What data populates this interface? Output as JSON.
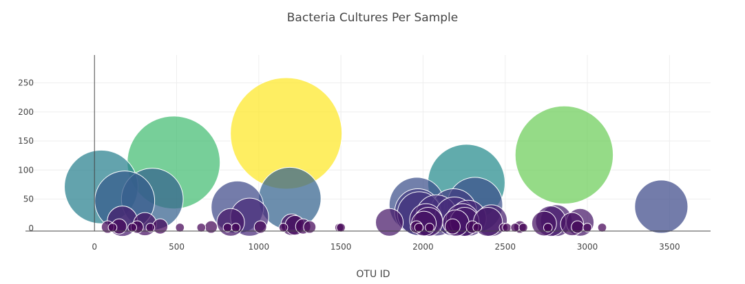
{
  "chart_data": {
    "type": "scatter",
    "title": "Bacteria Cultures Per Sample",
    "xlabel": "OTU ID",
    "ylabel": "",
    "xlim": [
      -420,
      3750
    ],
    "ylim": [
      -5,
      298
    ],
    "xticks": [
      0,
      500,
      1000,
      1500,
      2000,
      2500,
      3000,
      3500
    ],
    "yticks": [
      0,
      50,
      100,
      150,
      200,
      250
    ],
    "grid": true,
    "legend": "none",
    "colorscale": [
      "#440154",
      "#482878",
      "#3e4989",
      "#31688e",
      "#26828e",
      "#1f9e89",
      "#35b779",
      "#6ece58",
      "#b5de2b",
      "#fde725"
    ],
    "series": [
      {
        "x": [
          41,
          184,
          352,
          482,
          870,
          944,
          1167,
          1189,
          1962,
          1968,
          1977,
          2018,
          2082,
          2186,
          2191,
          2264,
          2275,
          2316,
          2859,
          3450,
          170,
          307,
          829,
          1795,
          2032,
          2240,
          2253,
          2395,
          2416,
          2737,
          2777,
          2811,
          2956,
          2907,
          1200,
          1220,
          2005,
          2200
        ],
        "y": [
          71,
          47,
          50,
          113,
          36,
          19,
          163,
          51,
          40,
          28,
          25,
          14,
          22,
          28,
          20,
          78,
          17,
          40,
          126,
          37,
          12,
          7,
          10,
          10,
          11,
          14,
          11,
          11,
          13,
          8,
          12,
          13,
          10,
          7,
          6,
          5,
          8,
          9
        ],
        "sizes": [
          71,
          47,
          50,
          113,
          36,
          19,
          163,
          51,
          40,
          28,
          25,
          14,
          22,
          28,
          20,
          78,
          17,
          40,
          126,
          37,
          12,
          7,
          10,
          10,
          11,
          14,
          11,
          11,
          13,
          8,
          12,
          13,
          10,
          7,
          6,
          5,
          8,
          9
        ]
      },
      {
        "x": [
          80,
          110,
          150,
          230,
          260,
          340,
          400,
          520,
          650,
          710,
          810,
          860,
          1010,
          1150,
          1270,
          1310,
          1490,
          1500,
          1960,
          1975,
          2040,
          2180,
          2300,
          2330,
          2490,
          2510,
          2560,
          2590,
          2610,
          2760,
          2940,
          3000,
          3090
        ],
        "y": [
          2,
          1,
          3,
          1,
          2,
          1,
          3,
          1,
          1,
          2,
          1,
          1,
          2,
          1,
          3,
          2,
          1,
          1,
          2,
          1,
          1,
          3,
          2,
          1,
          1,
          1,
          1,
          2,
          1,
          1,
          2,
          1,
          1
        ],
        "sizes": [
          2,
          1,
          3,
          1,
          2,
          1,
          3,
          1,
          1,
          2,
          1,
          1,
          2,
          1,
          3,
          2,
          1,
          1,
          2,
          1,
          1,
          3,
          2,
          1,
          1,
          1,
          1,
          2,
          1,
          1,
          2,
          1,
          1
        ]
      }
    ]
  }
}
